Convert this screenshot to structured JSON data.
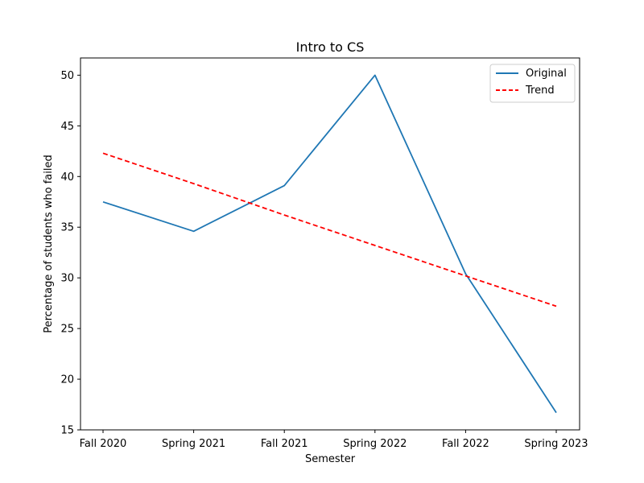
{
  "chart_data": {
    "type": "line",
    "title": "Intro to CS",
    "xlabel": "Semester",
    "ylabel": "Percentage of students who failed",
    "categories": [
      "Fall 2020",
      "Spring 2021",
      "Fall 2021",
      "Spring 2022",
      "Fall 2022",
      "Spring 2023"
    ],
    "ylim": [
      15,
      51.7
    ],
    "yticks": [
      15,
      20,
      25,
      30,
      35,
      40,
      45,
      50
    ],
    "grid": false,
    "legend_position": "top-right",
    "series": [
      {
        "name": "Original",
        "values": [
          37.5,
          34.6,
          39.1,
          50.0,
          30.4,
          16.7
        ],
        "color": "#1f77b4",
        "style": "solid"
      },
      {
        "name": "Trend",
        "values": [
          42.3,
          39.3,
          36.2,
          33.2,
          30.2,
          27.2
        ],
        "color": "#ff0000",
        "style": "dashed"
      }
    ]
  }
}
